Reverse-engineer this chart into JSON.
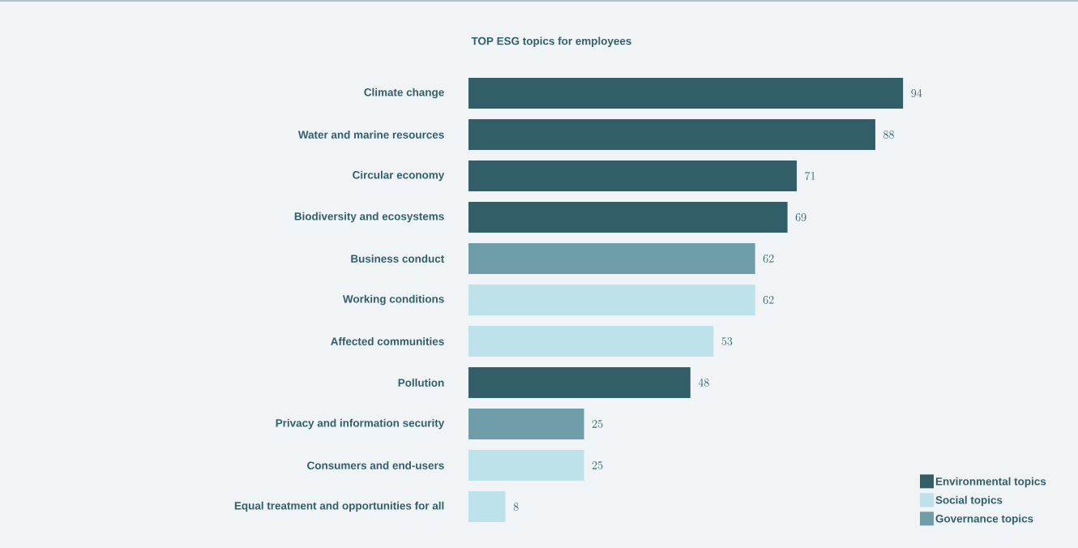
{
  "chart_data": {
    "type": "bar",
    "orientation": "horizontal",
    "title": "TOP ESG topics for employees",
    "categories": [
      "Climate change",
      "Water and marine resources",
      "Circular economy",
      "Biodiversity and ecosystems",
      "Business conduct",
      "Working conditions",
      "Affected communities",
      "Pollution",
      "Privacy and information security",
      "Consumers and end-users",
      "Equal treatment and opportunities for all"
    ],
    "series": [
      {
        "name": "Environmental topics",
        "color": "#325e68",
        "values": [
          94,
          88,
          71,
          69,
          null,
          null,
          null,
          48,
          null,
          null,
          null
        ]
      },
      {
        "name": "Social topics",
        "color": "#bde2e9",
        "values": [
          null,
          null,
          null,
          null,
          null,
          62,
          53,
          null,
          null,
          25,
          8
        ]
      },
      {
        "name": "Governance topics",
        "color": "#6e9ca8",
        "values": [
          null,
          null,
          null,
          null,
          62,
          null,
          null,
          null,
          25,
          null,
          null
        ]
      }
    ],
    "data_labels": true,
    "legend": "bottom right"
  }
}
